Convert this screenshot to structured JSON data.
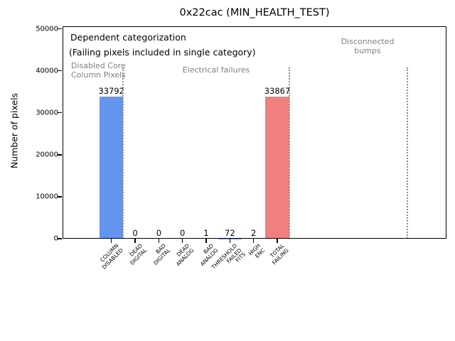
{
  "chart_data": {
    "type": "bar",
    "title": "0x22cac (MIN_HEALTH_TEST)",
    "ylabel": "Number of pixels",
    "xlabel": "",
    "ylim": [
      0,
      50000
    ],
    "yticks": [
      0,
      10000,
      20000,
      30000,
      40000,
      50000
    ],
    "grid": false,
    "legend": null,
    "categories": [
      "COLUMN\nDISABLED",
      "DEAD\nDIGITAL",
      "BAD\nDIGITAL",
      "DEAD\nANALOG",
      "BAD\nANALOG",
      "THRESHOLD\nFAILED\nFITS",
      "HIGH\nENC",
      "TOTAL\nFAILING"
    ],
    "values": [
      33792,
      0,
      0,
      0,
      1,
      72,
      2,
      33867
    ],
    "bar_value_labels": [
      "33792",
      "0",
      "0",
      "0",
      "1",
      "72",
      "2",
      "33867"
    ],
    "bar_colors": [
      "#6495ed",
      "#6495ed",
      "#6495ed",
      "#6495ed",
      "#6495ed",
      "#6495ed",
      "#6495ed",
      "#f08080"
    ],
    "annotations": [
      {
        "id": "dependent-categorization-note",
        "text": "Dependent categorization",
        "color": "#000000"
      },
      {
        "id": "failing-pixels-note",
        "text": "(Failing pixels included in single category)",
        "color": "#000000"
      },
      {
        "id": "region-disabled-core",
        "text": "Disabled Core\nColumn Pixels",
        "color": "#7f7f7f"
      },
      {
        "id": "region-electrical-failures",
        "text": "Electrical failures",
        "color": "#7f7f7f"
      },
      {
        "id": "region-disconnected-bumps",
        "text": "Disconnected\nbumps",
        "color": "#7f7f7f"
      }
    ],
    "separators": {
      "style": "dotted",
      "color": "#8c8c8c",
      "positions_between_categories": [
        0.5,
        7.5,
        12.5
      ],
      "top_value": 40800
    }
  },
  "colors": {
    "bar_blue": "#6495ed",
    "bar_red": "#f08080",
    "annotation_gray": "#7f7f7f",
    "axis": "#000000",
    "background": "#ffffff"
  }
}
